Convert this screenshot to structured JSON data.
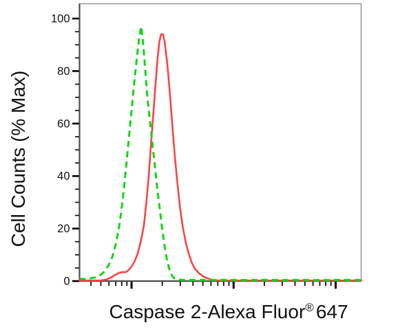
{
  "axes": {
    "x_label_main": "Caspase 2-Alexa Fluor",
    "x_label_registered": "®",
    "x_label_suffix": "647",
    "y_label": "Cell Counts (% Max)"
  },
  "colors": {
    "background": "#ffffff",
    "frame": "#909090",
    "axis_line": "#4c4c4c",
    "tick": "#000000",
    "text": "#111111",
    "control_green": "#14d414",
    "sample_red": "#fb4343"
  },
  "chart_data": {
    "type": "line",
    "subtype": "flow-cytometry-histogram-overlay",
    "title": "",
    "xlabel": "Caspase 2-Alexa Fluor® 647",
    "ylabel": "Cell Counts (% Max)",
    "x_scale": "log10",
    "x_range_log10": [
      0.49,
      3.25
    ],
    "x_major_ticks_log10": [
      1,
      2,
      3
    ],
    "x_tick_labels_shown": false,
    "ylim": [
      0,
      105.8
    ],
    "y_ticks": [
      0,
      20,
      40,
      60,
      80,
      100
    ],
    "y_minor_tick_step": 5,
    "grid": false,
    "legend_position": "none",
    "series": [
      {
        "name": "green-dashed-control",
        "style": "dashed",
        "color": "#14d414",
        "points_log10x_percent": [
          [
            0.49,
            0.9
          ],
          [
            0.55,
            0.7
          ],
          [
            0.6,
            1.1
          ],
          [
            0.645,
            1.4
          ],
          [
            0.69,
            2.2
          ],
          [
            0.73,
            3.5
          ],
          [
            0.775,
            6
          ],
          [
            0.81,
            9
          ],
          [
            0.845,
            14
          ],
          [
            0.875,
            20
          ],
          [
            0.9,
            27
          ],
          [
            0.925,
            35
          ],
          [
            0.95,
            45
          ],
          [
            0.975,
            55
          ],
          [
            1.0,
            65
          ],
          [
            1.03,
            77
          ],
          [
            1.055,
            86
          ],
          [
            1.075,
            93
          ],
          [
            1.094,
            97
          ],
          [
            1.115,
            90
          ],
          [
            1.135,
            80
          ],
          [
            1.155,
            70
          ],
          [
            1.175,
            63
          ],
          [
            1.2,
            54
          ],
          [
            1.225,
            45
          ],
          [
            1.25,
            36
          ],
          [
            1.275,
            28
          ],
          [
            1.3,
            20
          ],
          [
            1.325,
            13
          ],
          [
            1.35,
            7.5
          ],
          [
            1.375,
            4
          ],
          [
            1.4,
            1.8
          ],
          [
            1.425,
            0.8
          ],
          [
            1.46,
            0.5
          ],
          [
            1.55,
            0.4
          ],
          [
            1.7,
            0.4
          ],
          [
            1.9,
            0.45
          ],
          [
            2.1,
            0.4
          ],
          [
            2.3,
            0.45
          ],
          [
            2.5,
            0.4
          ],
          [
            2.7,
            0.45
          ],
          [
            2.9,
            0.4
          ],
          [
            3.1,
            0.45
          ],
          [
            3.25,
            0.4
          ]
        ]
      },
      {
        "name": "red-solid-sample",
        "style": "solid",
        "color": "#fb4343",
        "points_log10x_percent": [
          [
            0.49,
            0.2
          ],
          [
            0.62,
            0.2
          ],
          [
            0.7,
            0.25
          ],
          [
            0.745,
            0.5
          ],
          [
            0.78,
            1.0
          ],
          [
            0.815,
            1.8
          ],
          [
            0.85,
            2.6
          ],
          [
            0.88,
            3.2
          ],
          [
            0.91,
            3.4
          ],
          [
            0.945,
            3.4
          ],
          [
            0.97,
            4.2
          ],
          [
            1.0,
            5.5
          ],
          [
            1.03,
            7.5
          ],
          [
            1.06,
            10.5
          ],
          [
            1.09,
            15
          ],
          [
            1.12,
            21
          ],
          [
            1.145,
            30
          ],
          [
            1.17,
            41
          ],
          [
            1.19,
            52
          ],
          [
            1.21,
            62
          ],
          [
            1.235,
            75
          ],
          [
            1.255,
            85
          ],
          [
            1.272,
            91
          ],
          [
            1.288,
            94
          ],
          [
            1.308,
            94
          ],
          [
            1.325,
            91
          ],
          [
            1.35,
            83
          ],
          [
            1.375,
            72
          ],
          [
            1.4,
            59
          ],
          [
            1.425,
            47
          ],
          [
            1.45,
            37
          ],
          [
            1.475,
            28
          ],
          [
            1.5,
            21
          ],
          [
            1.53,
            15
          ],
          [
            1.56,
            10.5
          ],
          [
            1.59,
            7
          ],
          [
            1.62,
            4.8
          ],
          [
            1.66,
            3
          ],
          [
            1.7,
            1.8
          ],
          [
            1.745,
            1.0
          ],
          [
            1.79,
            0.5
          ],
          [
            1.85,
            0.25
          ],
          [
            2.0,
            0.2
          ],
          [
            2.3,
            0.2
          ],
          [
            2.6,
            0.2
          ],
          [
            2.9,
            0.2
          ],
          [
            3.1,
            0.2
          ],
          [
            3.25,
            0.2
          ]
        ]
      }
    ]
  }
}
